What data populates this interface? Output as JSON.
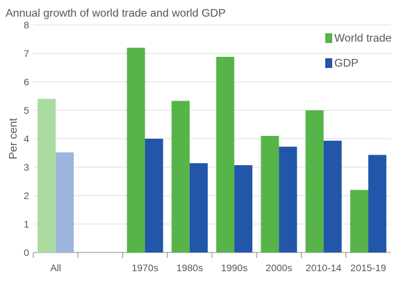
{
  "chart_data": {
    "type": "bar",
    "title": "Annual growth of world trade and world GDP",
    "ylabel": "Per cent",
    "xlabel": "",
    "ylim": [
      0,
      8
    ],
    "yticks": [
      0,
      1,
      2,
      3,
      4,
      5,
      6,
      7,
      8
    ],
    "grid": true,
    "legend_position": "top-right",
    "categories": [
      "All",
      "",
      "1970s",
      "1980s",
      "1990s",
      "2000s",
      "2010-14",
      "2015-19"
    ],
    "series": [
      {
        "name": "World trade",
        "color": "#56b448",
        "highlight_faded_color": "#a9dba0",
        "values": [
          5.4,
          null,
          7.2,
          5.33,
          6.88,
          4.1,
          5.0,
          2.2
        ]
      },
      {
        "name": "GDP",
        "color": "#2256a8",
        "highlight_faded_color": "#9db4dc",
        "values": [
          3.52,
          null,
          4.0,
          3.14,
          3.07,
          3.72,
          3.93,
          3.43
        ]
      }
    ],
    "faded_categories": [
      "All"
    ]
  }
}
